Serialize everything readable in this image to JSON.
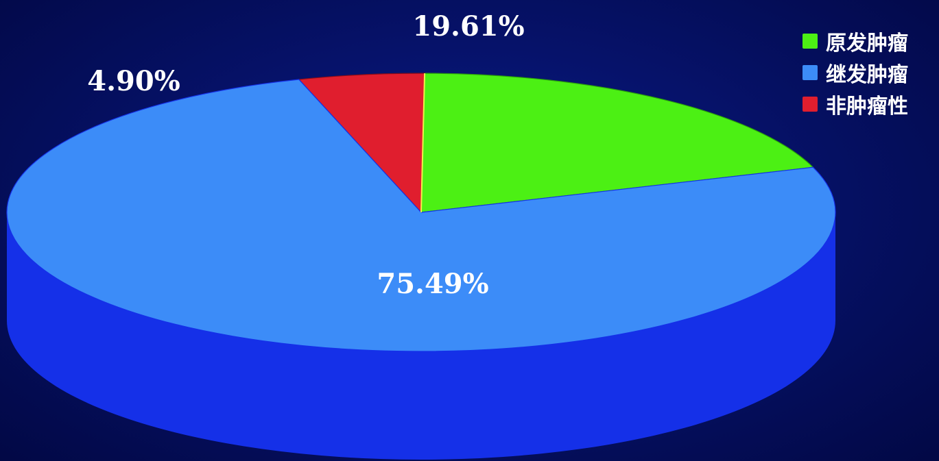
{
  "chart_data": {
    "type": "pie",
    "style": "3d",
    "title": "",
    "categories": [
      "原发肿瘤",
      "继发肿瘤",
      "非肿瘤性"
    ],
    "values": [
      19.61,
      75.49,
      4.9
    ],
    "labels": [
      "19.61%",
      "75.49%",
      "4.90%"
    ],
    "colors": [
      "#4cf014",
      "#3c8cf8",
      "#e01e2e"
    ],
    "side_colors": [
      "#2ba00a",
      "#1530e8",
      "#8a0c18"
    ],
    "legend": {
      "position": "top-right",
      "entries": [
        "原发肿瘤",
        "继发肿瘤",
        "非肿瘤性"
      ]
    }
  }
}
